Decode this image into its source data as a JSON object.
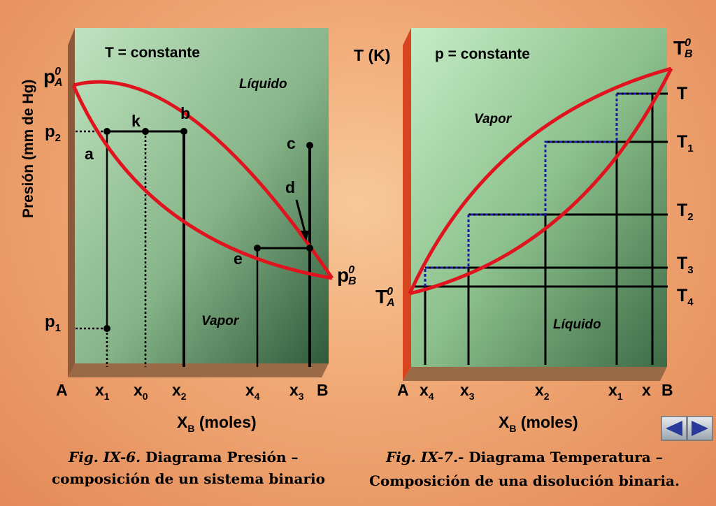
{
  "left": {
    "constant": "T = constante",
    "y_axis": "Presión (mm de Hg)",
    "region_top": "Líquido",
    "region_bottom": "Vapor",
    "pA": "p",
    "pA_sup": "0",
    "pA_sub": "A",
    "pB": "p",
    "pB_sup": "0",
    "pB_sub": "B",
    "p2": "p",
    "p2_sub": "2",
    "p1": "p",
    "p1_sub": "1",
    "points": {
      "a": "a",
      "b": "b",
      "c": "c",
      "d": "d",
      "e": "e",
      "k": "k"
    },
    "x_labels": [
      {
        "t": "A",
        "s": ""
      },
      {
        "t": "x",
        "s": "1"
      },
      {
        "t": "x",
        "s": "0"
      },
      {
        "t": "x",
        "s": "2"
      },
      {
        "t": "x",
        "s": "4"
      },
      {
        "t": "x",
        "s": "3"
      },
      {
        "t": "B",
        "s": ""
      }
    ],
    "x_title": "X",
    "x_title_sub": "B",
    "x_title_rest": " (moles)"
  },
  "right": {
    "constant": "p = constante",
    "y_axis": "T (K)",
    "region_top": "Vapor",
    "region_bottom": "Líquido",
    "TB": "T",
    "TB_sup": "0",
    "TB_sub": "B",
    "TA": "T",
    "TA_sup": "0",
    "TA_sub": "A",
    "t_labels": [
      {
        "t": "T",
        "s": ""
      },
      {
        "t": "T",
        "s": "1"
      },
      {
        "t": "T",
        "s": "2"
      },
      {
        "t": "T",
        "s": "3"
      },
      {
        "t": "T",
        "s": "4"
      }
    ],
    "x_labels": [
      {
        "t": "A",
        "s": ""
      },
      {
        "t": "x",
        "s": "4"
      },
      {
        "t": "x",
        "s": "3"
      },
      {
        "t": "x",
        "s": "2"
      },
      {
        "t": "x",
        "s": "1"
      },
      {
        "t": "x",
        "s": ""
      },
      {
        "t": "B",
        "s": ""
      }
    ],
    "x_title": "X",
    "x_title_sub": "B",
    "x_title_rest": " (moles)"
  },
  "captions": {
    "left_prefix": "Fig. IX-6.",
    "left_line1": "  Diagrama Presión –",
    "left_line2": "composición de un sistema binario",
    "right_prefix": "Fig. IX-7.-",
    "right_line1": "  Diagrama Temperatura –",
    "right_line2": "Composición de una disolución binaria."
  },
  "colors": {
    "curve": "#e0141e",
    "line": "#000000",
    "dotted": "#1a1aa8"
  }
}
